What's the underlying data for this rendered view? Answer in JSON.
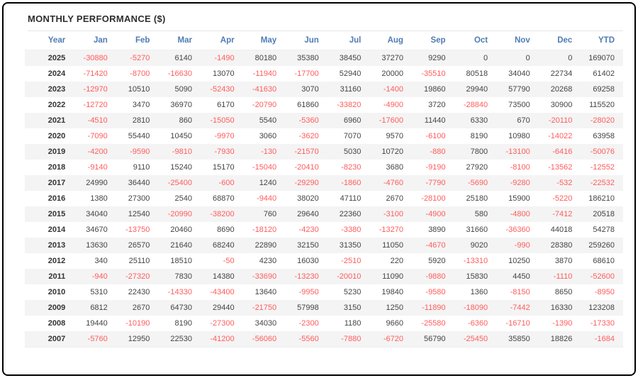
{
  "title": "MONTHLY PERFORMANCE ($)",
  "colors": {
    "frame_border": "#000000",
    "header_text": "#4f7cb3",
    "negative_value": "#ff5c5c",
    "positive_value": "#444444",
    "row_alternate": "#f4f4f4",
    "title_text": "#2e2e2e"
  },
  "table": {
    "columns": [
      "Year",
      "Jan",
      "Feb",
      "Mar",
      "Apr",
      "May",
      "Jun",
      "Jul",
      "Aug",
      "Sep",
      "Oct",
      "Nov",
      "Dec",
      "YTD"
    ],
    "rows": [
      {
        "year": "2025",
        "values": [
          -30880,
          -5270,
          6140,
          -1490,
          80180,
          35380,
          38450,
          37270,
          9290,
          0,
          0,
          0,
          169070
        ]
      },
      {
        "year": "2024",
        "values": [
          -71420,
          -8700,
          -16630,
          13070,
          -11940,
          -17700,
          52940,
          20000,
          -35510,
          80518,
          34040,
          22734,
          61402
        ]
      },
      {
        "year": "2023",
        "values": [
          -12970,
          10510,
          5090,
          -52430,
          -41630,
          3070,
          31160,
          -1400,
          19860,
          29940,
          57790,
          20268,
          69258
        ]
      },
      {
        "year": "2022",
        "values": [
          -12720,
          3470,
          36970,
          6170,
          -20790,
          61860,
          -33820,
          -4900,
          3720,
          -28840,
          73500,
          30900,
          115520
        ]
      },
      {
        "year": "2021",
        "values": [
          -4510,
          2810,
          860,
          -15050,
          5540,
          -5360,
          6960,
          -17600,
          11440,
          6330,
          670,
          -20110,
          -28020
        ]
      },
      {
        "year": "2020",
        "values": [
          -7090,
          55440,
          10450,
          -9970,
          3060,
          -3620,
          7070,
          9570,
          -6100,
          8190,
          10980,
          -14022,
          63958
        ]
      },
      {
        "year": "2019",
        "values": [
          -4200,
          -9590,
          -9810,
          -7930,
          -130,
          -21570,
          5030,
          10720,
          -880,
          7800,
          -13100,
          -6416,
          -50076
        ]
      },
      {
        "year": "2018",
        "values": [
          -9140,
          9110,
          15240,
          15170,
          -15040,
          -20410,
          -8230,
          3680,
          -9190,
          27920,
          -8100,
          -13562,
          -12552
        ]
      },
      {
        "year": "2017",
        "values": [
          24990,
          36440,
          -25400,
          -600,
          1240,
          -29290,
          -1860,
          -4760,
          -7790,
          -5690,
          -9280,
          -532,
          -22532
        ]
      },
      {
        "year": "2016",
        "values": [
          1380,
          27300,
          2540,
          68870,
          -9440,
          38020,
          47110,
          2670,
          -28100,
          25180,
          15900,
          -5220,
          186210
        ]
      },
      {
        "year": "2015",
        "values": [
          34040,
          12540,
          -20990,
          -38200,
          760,
          29640,
          22360,
          -3100,
          -4900,
          580,
          -4800,
          -7412,
          20518
        ]
      },
      {
        "year": "2014",
        "values": [
          34670,
          -13750,
          20460,
          8690,
          -18120,
          -4230,
          -3380,
          -13270,
          3890,
          31660,
          -36360,
          44018,
          54278
        ]
      },
      {
        "year": "2013",
        "values": [
          13630,
          26570,
          21640,
          68240,
          22890,
          32150,
          31350,
          11050,
          -4670,
          9020,
          -990,
          28380,
          259260
        ]
      },
      {
        "year": "2012",
        "values": [
          340,
          25110,
          18510,
          -50,
          4230,
          16030,
          -2510,
          220,
          5920,
          -13310,
          10250,
          3870,
          68610
        ]
      },
      {
        "year": "2011",
        "values": [
          -940,
          -27320,
          7830,
          14380,
          -33690,
          -13230,
          -20010,
          11090,
          -9880,
          15830,
          4450,
          -1110,
          -52600
        ]
      },
      {
        "year": "2010",
        "values": [
          5310,
          22430,
          -14330,
          -43400,
          13640,
          -9950,
          5230,
          19840,
          -9580,
          1360,
          -8150,
          8650,
          -8950
        ]
      },
      {
        "year": "2009",
        "values": [
          6812,
          2670,
          64730,
          29440,
          -21750,
          57998,
          3150,
          1250,
          -11890,
          -18090,
          -7442,
          16330,
          123208
        ]
      },
      {
        "year": "2008",
        "values": [
          19440,
          -10190,
          8190,
          -27300,
          34030,
          -2300,
          1180,
          9660,
          -25580,
          -6360,
          -16710,
          -1390,
          -17330
        ]
      },
      {
        "year": "2007",
        "values": [
          -5760,
          12950,
          22530,
          -41200,
          -56060,
          -5560,
          -7880,
          -6720,
          56790,
          -25450,
          35850,
          18826,
          -1684
        ]
      }
    ]
  }
}
